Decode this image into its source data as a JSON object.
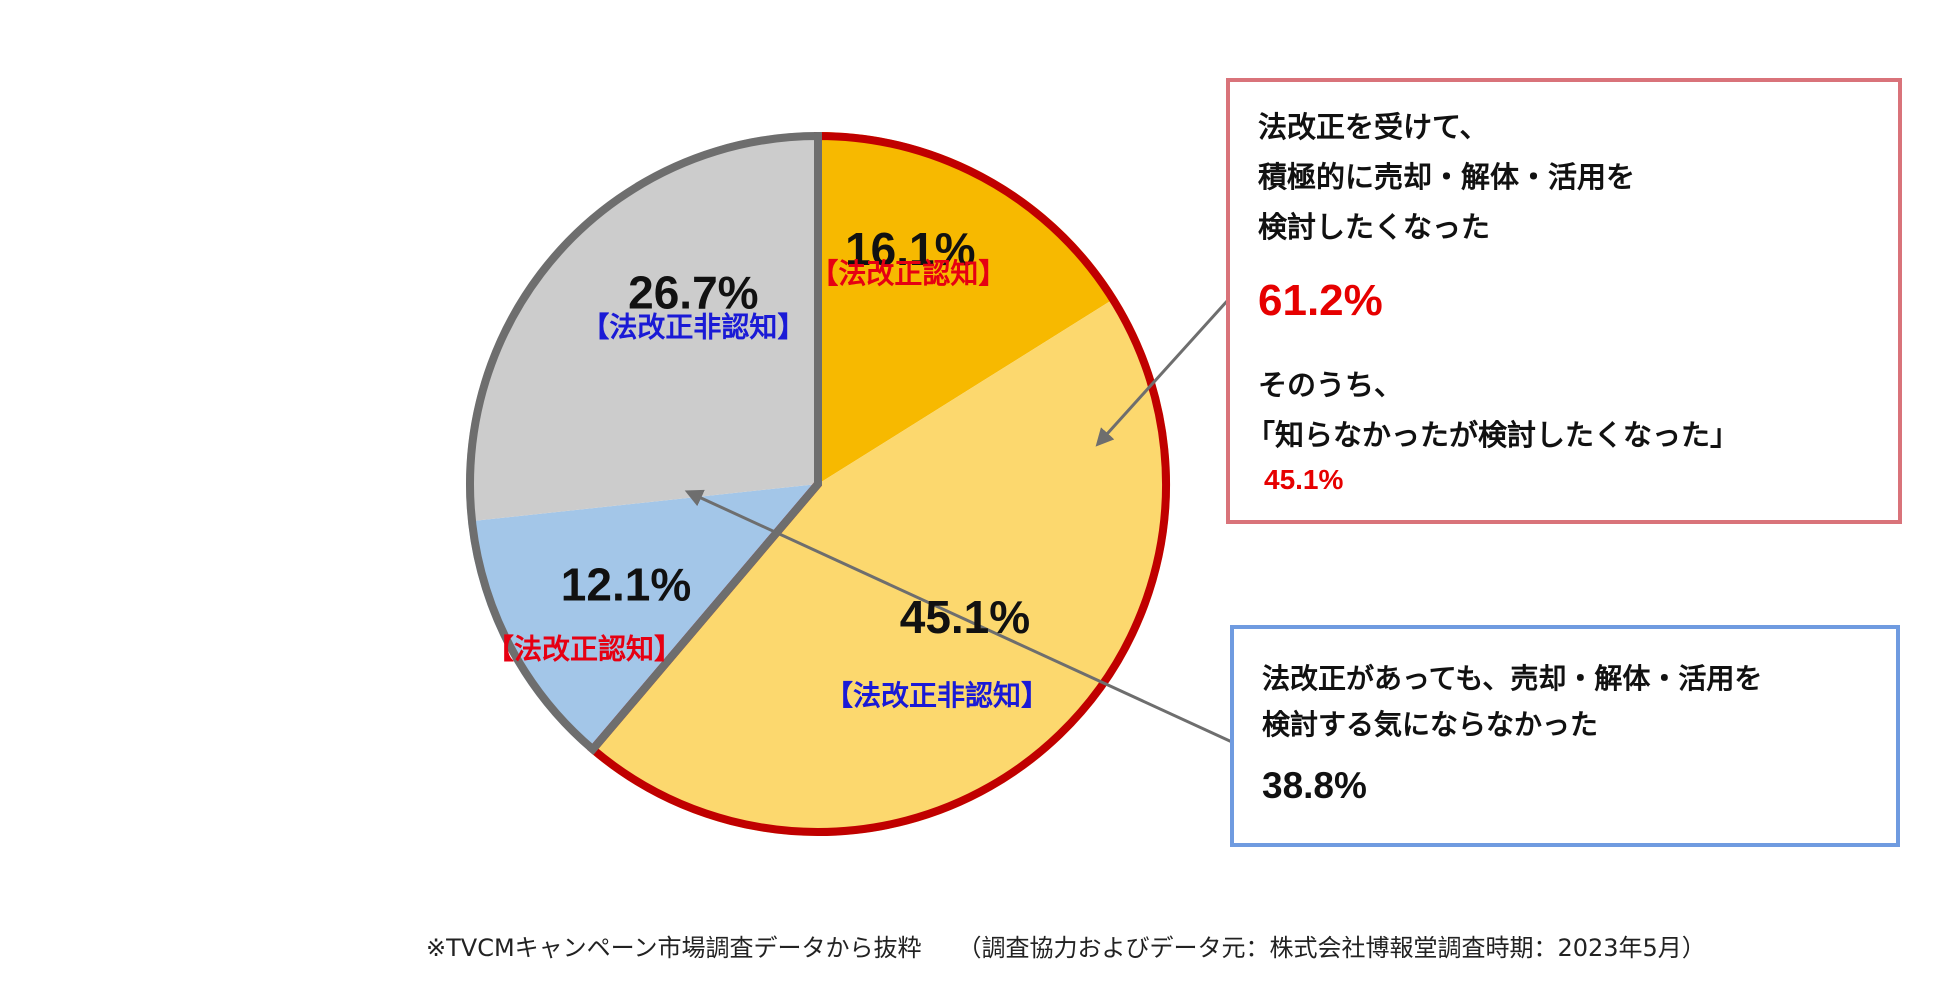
{
  "chart_data": {
    "type": "pie",
    "start": "12 o'clock, clockwise",
    "slices": [
      {
        "value": 16.1,
        "label": "16.1%",
        "tag": "【法改正認知】",
        "color": "#f7b900",
        "tag_color": "#e60012"
      },
      {
        "value": 45.1,
        "label": "45.1%",
        "tag": "【法改正非認知】",
        "color": "#fcd86e",
        "tag_color": "#1a1ad6"
      },
      {
        "value": 12.1,
        "label": "12.1%",
        "tag": "【法改正認知】",
        "color": "#a3c6e8",
        "tag_color": "#e60012"
      },
      {
        "value": 26.7,
        "label": "26.7%",
        "tag": "【法改正非認知】",
        "color": "#cccccc",
        "tag_color": "#1a1ad6"
      }
    ],
    "groups": [
      {
        "name": "検討したくなった",
        "value": 61.2,
        "outline_color": "#c00000"
      },
      {
        "name": "検討する気にならなかった",
        "value": 38.8,
        "outline_color": "#6e6e6e"
      }
    ]
  },
  "callout_positive": {
    "line1": "法改正を受けて、",
    "line2": "積極的に売却・解体・活用を",
    "line3": "検討したくなった",
    "total": "61.2%",
    "sub1": "そのうち、",
    "sub2": "「知らなかったが検討したくなった」",
    "sub_value": "45.1%",
    "border_color": "#d9737a"
  },
  "callout_negative": {
    "line1": "法改正があっても、売却・解体・活用を",
    "line2": "検討する気にならなかった",
    "total": "38.8%",
    "border_color": "#6f9be0"
  },
  "footnote": {
    "left": "※TVCMキャンペーン市場調査データから抜粋",
    "right": "（調査協力およびデータ元：株式会社博報堂調査時期：2023年5月）"
  }
}
